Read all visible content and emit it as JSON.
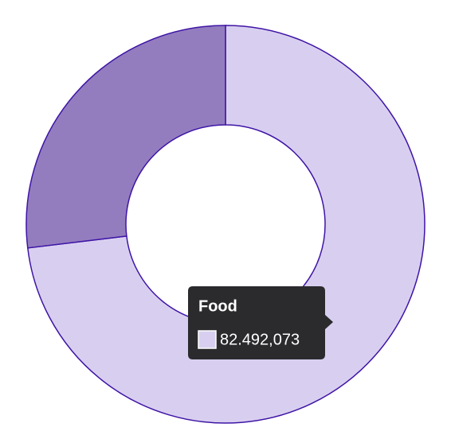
{
  "chart_data": {
    "type": "donut",
    "categories": [
      "Food",
      null
    ],
    "values": [
      82492.073,
      30360
    ],
    "value_labels": [
      "82.492,073",
      null
    ],
    "colors": [
      "#d8cff0",
      "#937dbf"
    ],
    "stroke": "#3f14a6",
    "tooltip_index": 0
  }
}
